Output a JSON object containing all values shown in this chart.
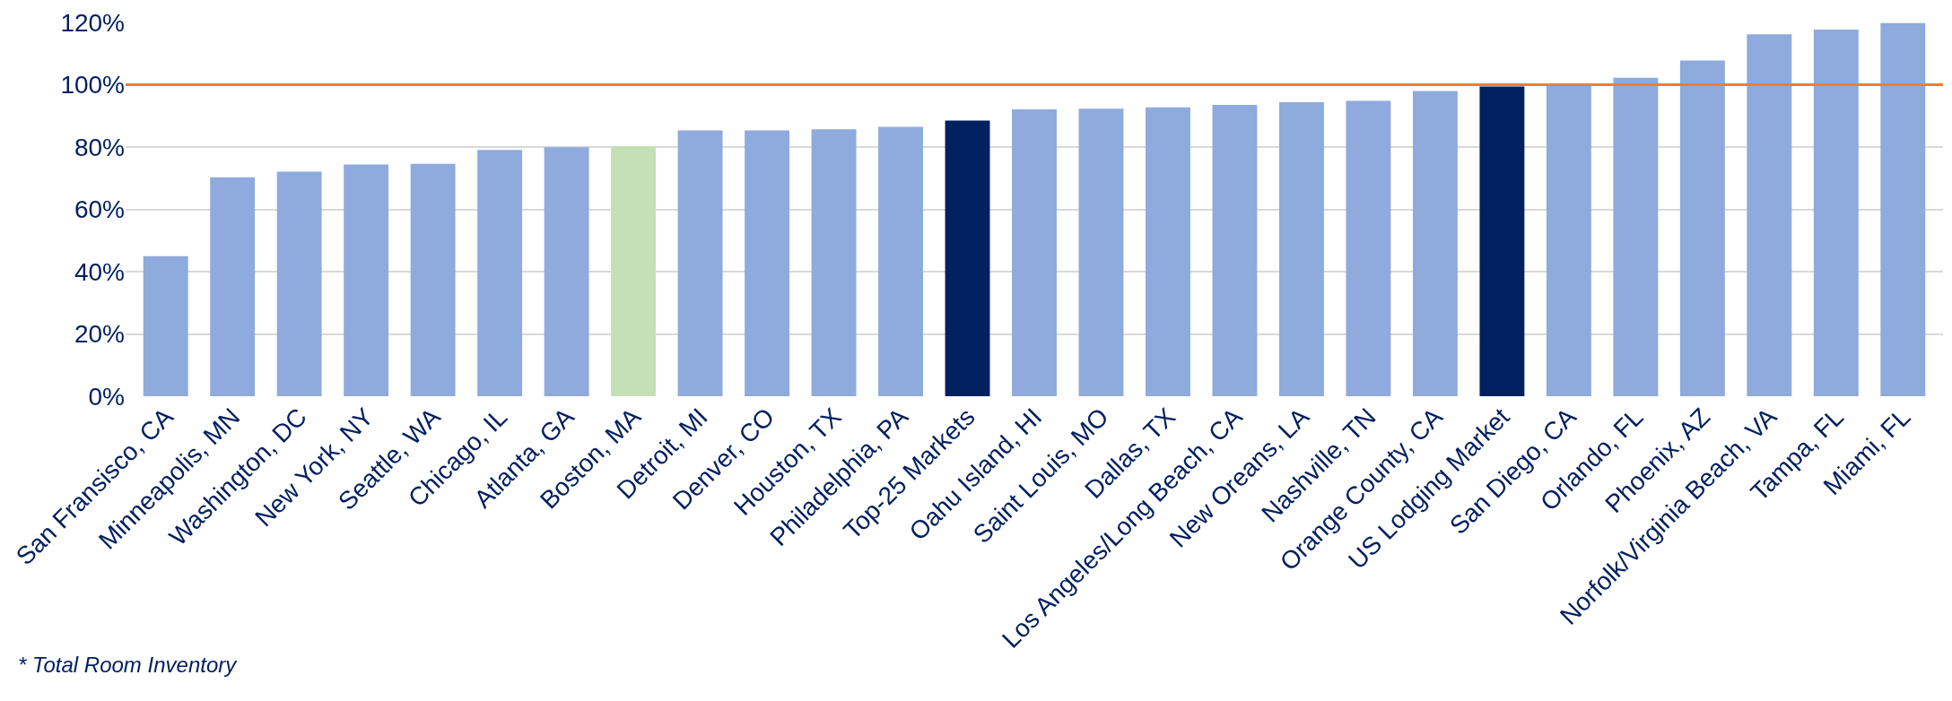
{
  "chart_data": {
    "type": "bar",
    "categories": [
      "San Fransisco, CA",
      "Minneapolis, MN",
      "Washington, DC",
      "New York, NY",
      "Seattle, WA",
      "Chicago, IL",
      "Atlanta, GA",
      "Boston, MA",
      "Detroit, MI",
      "Denver, CO",
      "Houston, TX",
      "Philadelphia, PA",
      "Top-25 Markets",
      "Oahu Island, HI",
      "Saint Louis, MO",
      "Dallas, TX",
      "Los Angeles/Long Beach, CA",
      "New Oreans, LA",
      "Nashville, TN",
      "Orange County, CA",
      "US Lodging Market",
      "San Diego, CA",
      "Orlando, FL",
      "Phoenix, AZ",
      "Norfolk/Virginia Beach, VA",
      "Tampa, FL",
      "Miami, FL"
    ],
    "values": [
      45,
      70.3,
      72.1,
      74.4,
      74.6,
      79.1,
      79.9,
      80.3,
      85.3,
      85.3,
      85.7,
      86.5,
      88.5,
      92.1,
      92.3,
      92.7,
      93.5,
      94.4,
      94.8,
      98,
      99.4,
      99.9,
      102.2,
      107.8,
      116.2,
      117.7,
      119.8
    ],
    "colors": [
      "#8faadc",
      "#8faadc",
      "#8faadc",
      "#8faadc",
      "#8faadc",
      "#8faadc",
      "#8faadc",
      "#c5e0b4",
      "#8faadc",
      "#8faadc",
      "#8faadc",
      "#8faadc",
      "#002060",
      "#8faadc",
      "#8faadc",
      "#8faadc",
      "#8faadc",
      "#8faadc",
      "#8faadc",
      "#8faadc",
      "#002060",
      "#8faadc",
      "#8faadc",
      "#8faadc",
      "#8faadc",
      "#8faadc",
      "#8faadc"
    ],
    "ylim": [
      0,
      120
    ],
    "yticks": [
      {
        "value": 0,
        "label": "0%"
      },
      {
        "value": 20,
        "label": "20%"
      },
      {
        "value": 40,
        "label": "40%"
      },
      {
        "value": 60,
        "label": "60%"
      },
      {
        "value": 80,
        "label": "80%"
      },
      {
        "value": 100,
        "label": "100%"
      },
      {
        "value": 120,
        "label": "120%"
      }
    ],
    "grid": "y",
    "ref_lines": [
      {
        "axis": "y",
        "value": 100,
        "label": null,
        "color": "#ed7d31"
      }
    ],
    "annotations": [
      "* Total Room Inventory"
    ]
  }
}
